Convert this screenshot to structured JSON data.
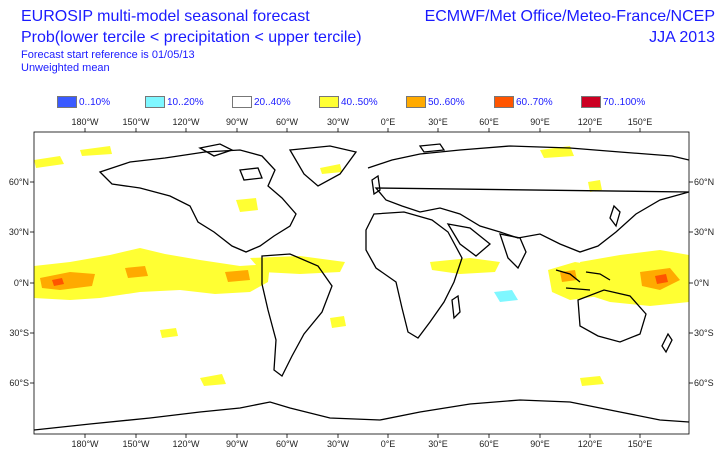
{
  "header": {
    "title_line1": "EUROSIP multi-model seasonal forecast",
    "title_line2": "Prob(lower tercile < precipitation < upper tercile)",
    "start_reference": "Forecast start reference is 01/05/13",
    "mean_type": "Unweighted mean",
    "centres": "ECMWF/Met Office/Meteo-France/NCEP",
    "season": "JJA 2013"
  },
  "legend": [
    {
      "label": "0..10%",
      "color": "#3a5aff"
    },
    {
      "label": "10..20%",
      "color": "#7ff7ff"
    },
    {
      "label": "20..40%",
      "color": "#ffffff"
    },
    {
      "label": "40..50%",
      "color": "#ffff33"
    },
    {
      "label": "50..60%",
      "color": "#ffaa00"
    },
    {
      "label": "60..70%",
      "color": "#ff5500"
    },
    {
      "label": "70..100%",
      "color": "#cc0022"
    }
  ],
  "axes": {
    "lon_labels": [
      "180°W",
      "150°W",
      "120°W",
      "90°W",
      "60°W",
      "30°W",
      "0°E",
      "30°E",
      "60°E",
      "90°E",
      "120°E",
      "150°E"
    ],
    "lat_labels_left": [
      "60°N",
      "30°N",
      "0°N",
      "30°S",
      "60°S"
    ],
    "lat_labels_right": [
      "60°N",
      "30°N",
      "0°N",
      "30°S",
      "60°S"
    ]
  }
}
